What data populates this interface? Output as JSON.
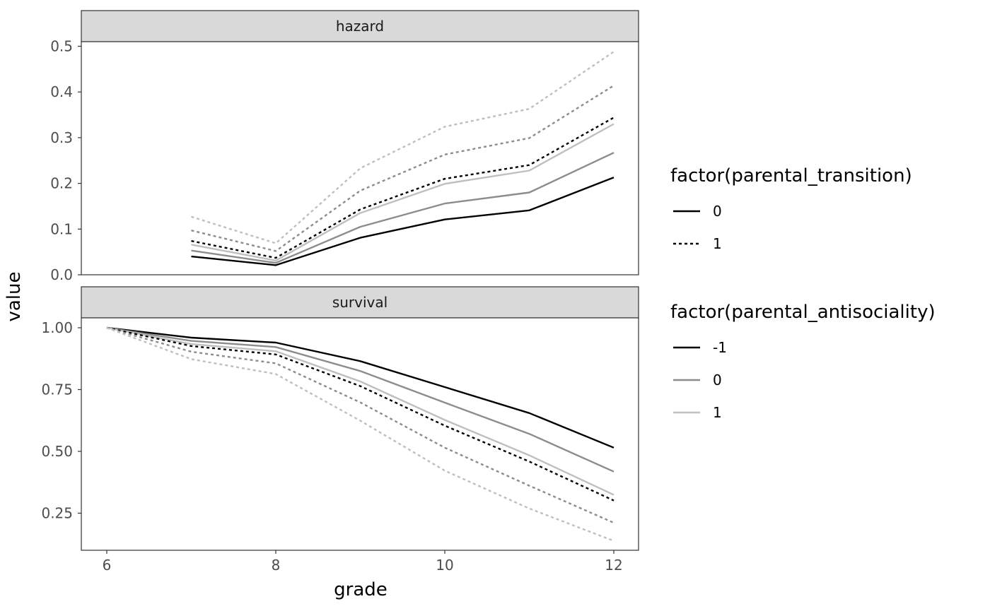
{
  "colors": {
    "panel_border": "#333333",
    "strip_fill": "#d9d9d9",
    "tick": "#333333",
    "antisociality": {
      "-1": "#000000",
      "0": "#8c8c8c",
      "1": "#bfbfbf"
    }
  },
  "chart_data": {
    "type": "line",
    "xlabel": "grade",
    "ylabel": "value",
    "x": [
      6,
      7,
      8,
      9,
      10,
      11,
      12
    ],
    "xticks": [
      "6",
      "8",
      "10",
      "12"
    ],
    "grid": false,
    "legend_position": "right",
    "legends": [
      {
        "title": "factor(parental_transition)",
        "mapping": "linetype",
        "entries": [
          {
            "label": "0",
            "linetype": "solid"
          },
          {
            "label": "1",
            "linetype": "dashed"
          }
        ]
      },
      {
        "title": "factor(parental_antisociality)",
        "mapping": "color",
        "entries": [
          {
            "label": "-1",
            "color": "#000000"
          },
          {
            "label": "0",
            "color": "#8c8c8c"
          },
          {
            "label": "1",
            "color": "#bfbfbf"
          }
        ]
      }
    ],
    "panels": [
      {
        "label": "hazard",
        "ylim": [
          0,
          0.51
        ],
        "yticks": [
          "0.0",
          "0.1",
          "0.2",
          "0.3",
          "0.4",
          "0.5"
        ],
        "series": [
          {
            "parental_transition": "0",
            "parental_antisociality": "-1",
            "x": [
              7,
              8,
              9,
              10,
              11,
              12
            ],
            "values": [
              0.04,
              0.021,
              0.081,
              0.121,
              0.141,
              0.213
            ]
          },
          {
            "parental_transition": "0",
            "parental_antisociality": "0",
            "x": [
              7,
              8,
              9,
              10,
              11,
              12
            ],
            "values": [
              0.053,
              0.026,
              0.105,
              0.156,
              0.18,
              0.267
            ]
          },
          {
            "parental_transition": "0",
            "parental_antisociality": "1",
            "x": [
              7,
              8,
              9,
              10,
              11,
              12
            ],
            "values": [
              0.066,
              0.031,
              0.135,
              0.199,
              0.228,
              0.33
            ]
          },
          {
            "parental_transition": "1",
            "parental_antisociality": "-1",
            "x": [
              7,
              8,
              9,
              10,
              11,
              12
            ],
            "values": [
              0.074,
              0.037,
              0.143,
              0.21,
              0.24,
              0.344
            ]
          },
          {
            "parental_transition": "1",
            "parental_antisociality": "0",
            "x": [
              7,
              8,
              9,
              10,
              11,
              12
            ],
            "values": [
              0.097,
              0.052,
              0.184,
              0.263,
              0.299,
              0.414
            ]
          },
          {
            "parental_transition": "1",
            "parental_antisociality": "1",
            "x": [
              7,
              8,
              9,
              10,
              11,
              12
            ],
            "values": [
              0.127,
              0.069,
              0.233,
              0.324,
              0.363,
              0.488
            ]
          }
        ]
      },
      {
        "label": "survival",
        "ylim": [
          0.1,
          1.04
        ],
        "yticks": [
          "0.25",
          "0.50",
          "0.75",
          "1.00"
        ],
        "series": [
          {
            "parental_transition": "0",
            "parental_antisociality": "-1",
            "x": [
              6,
              7,
              8,
              9,
              10,
              11,
              12
            ],
            "values": [
              1.0,
              0.96,
              0.94,
              0.865,
              0.76,
              0.655,
              0.515
            ]
          },
          {
            "parental_transition": "0",
            "parental_antisociality": "0",
            "x": [
              6,
              7,
              8,
              9,
              10,
              11,
              12
            ],
            "values": [
              1.0,
              0.947,
              0.922,
              0.825,
              0.697,
              0.571,
              0.418
            ]
          },
          {
            "parental_transition": "0",
            "parental_antisociality": "1",
            "x": [
              6,
              7,
              8,
              9,
              10,
              11,
              12
            ],
            "values": [
              1.0,
              0.934,
              0.905,
              0.783,
              0.627,
              0.484,
              0.324
            ]
          },
          {
            "parental_transition": "1",
            "parental_antisociality": "-1",
            "x": [
              6,
              7,
              8,
              9,
              10,
              11,
              12
            ],
            "values": [
              1.0,
              0.926,
              0.892,
              0.764,
              0.604,
              0.459,
              0.301
            ]
          },
          {
            "parental_transition": "1",
            "parental_antisociality": "0",
            "x": [
              6,
              7,
              8,
              9,
              10,
              11,
              12
            ],
            "values": [
              1.0,
              0.903,
              0.856,
              0.698,
              0.515,
              0.361,
              0.211
            ]
          },
          {
            "parental_transition": "1",
            "parental_antisociality": "1",
            "x": [
              6,
              7,
              8,
              9,
              10,
              11,
              12
            ],
            "values": [
              1.0,
              0.873,
              0.813,
              0.624,
              0.422,
              0.269,
              0.138
            ]
          }
        ]
      }
    ]
  }
}
